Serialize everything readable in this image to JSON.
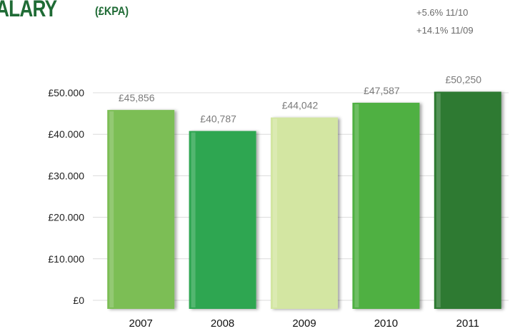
{
  "header": {
    "title": "ALARY",
    "subtitle": "(£KPA)"
  },
  "growth": [
    {
      "text": "+5.6% 11/10"
    },
    {
      "text": "+14.1% 11/09"
    }
  ],
  "chart_data": {
    "type": "bar",
    "categories": [
      "2007",
      "2008",
      "2009",
      "2010",
      "2011"
    ],
    "values": [
      45856,
      40787,
      44042,
      47587,
      50250
    ],
    "value_labels": [
      "£45,856",
      "£40,787",
      "£44,042",
      "£47,587",
      "£50,250"
    ],
    "ylim": [
      0,
      50000
    ],
    "yticks": [
      0,
      10000,
      20000,
      30000,
      40000,
      50000
    ],
    "ytick_labels": [
      "£0",
      "£10.000",
      "£20.000",
      "£30.000",
      "£40.000",
      "£50.000"
    ],
    "bar_colors": [
      "#7cbe55",
      "#2fa651",
      "#d3e6a2",
      "#4fb042",
      "#2f7a32"
    ],
    "grid": true
  }
}
